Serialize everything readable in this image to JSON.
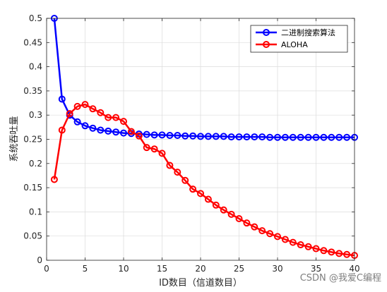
{
  "chart_data": {
    "type": "line",
    "title": "",
    "xlabel": "ID数目（信道数目）",
    "ylabel": "系统吞吐量",
    "xlim": [
      0,
      40
    ],
    "ylim": [
      0,
      0.5
    ],
    "xticks": [
      0,
      5,
      10,
      15,
      20,
      25,
      30,
      35,
      40
    ],
    "yticks": [
      0,
      0.05,
      0.1,
      0.15,
      0.2,
      0.25,
      0.3,
      0.35,
      0.4,
      0.45,
      0.5
    ],
    "xtick_labels": [
      "0",
      "5",
      "10",
      "15",
      "20",
      "25",
      "30",
      "35",
      "40"
    ],
    "ytick_labels": [
      "0",
      "0.05",
      "0.1",
      "0.15",
      "0.2",
      "0.25",
      "0.3",
      "0.35",
      "0.4",
      "0.45",
      "0.5"
    ],
    "grid": true,
    "legend_position": "top-right",
    "x": [
      1,
      2,
      3,
      4,
      5,
      6,
      7,
      8,
      9,
      10,
      11,
      12,
      13,
      14,
      15,
      16,
      17,
      18,
      19,
      20,
      21,
      22,
      23,
      24,
      25,
      26,
      27,
      28,
      29,
      30,
      31,
      32,
      33,
      34,
      35,
      36,
      37,
      38,
      39,
      40
    ],
    "series": [
      {
        "name": "二进制搜索算法",
        "color": "#0000ff",
        "values": [
          0.5,
          0.333,
          0.3,
          0.286,
          0.278,
          0.273,
          0.269,
          0.267,
          0.265,
          0.263,
          0.262,
          0.261,
          0.26,
          0.259,
          0.259,
          0.258,
          0.258,
          0.257,
          0.257,
          0.256,
          0.256,
          0.256,
          0.256,
          0.255,
          0.255,
          0.255,
          0.255,
          0.255,
          0.254,
          0.254,
          0.254,
          0.254,
          0.254,
          0.254,
          0.254,
          0.254,
          0.254,
          0.254,
          0.254,
          0.254
        ]
      },
      {
        "name": "ALOHA",
        "color": "#ff0000",
        "values": [
          0.167,
          0.269,
          0.303,
          0.318,
          0.322,
          0.313,
          0.305,
          0.295,
          0.295,
          0.287,
          0.266,
          0.257,
          0.233,
          0.23,
          0.221,
          0.196,
          0.182,
          0.165,
          0.147,
          0.138,
          0.126,
          0.114,
          0.104,
          0.095,
          0.086,
          0.077,
          0.069,
          0.061,
          0.055,
          0.049,
          0.043,
          0.037,
          0.032,
          0.028,
          0.024,
          0.02,
          0.017,
          0.014,
          0.012,
          0.01
        ]
      }
    ]
  },
  "watermark": "CSDN @我爱C编程"
}
